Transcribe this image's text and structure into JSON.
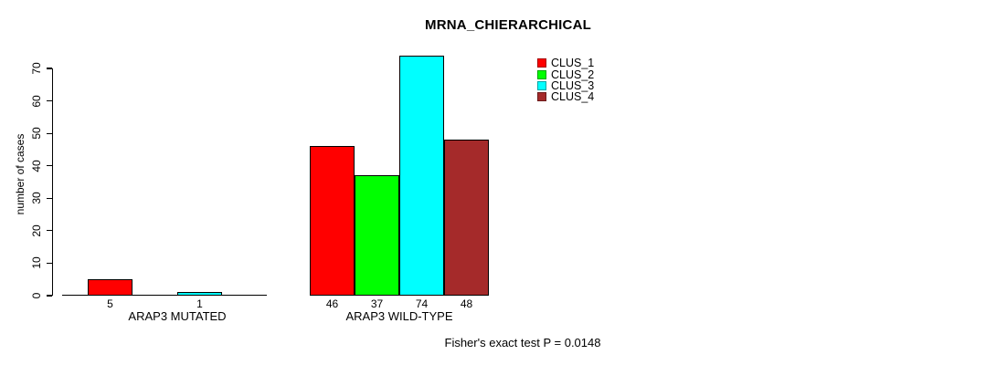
{
  "chart_data": {
    "type": "bar",
    "title": "MRNA_CHIERARCHICAL",
    "ylabel": "number of cases",
    "xlabel": "",
    "ylim": [
      0,
      70
    ],
    "yticks": [
      0,
      10,
      20,
      30,
      40,
      50,
      60,
      70
    ],
    "grid": false,
    "legend_position": "top-right",
    "categories": [
      "ARAP3 MUTATED",
      "ARAP3 WILD-TYPE"
    ],
    "series": [
      {
        "name": "CLUS_1",
        "color": "#FF0000",
        "values": [
          5,
          46
        ]
      },
      {
        "name": "CLUS_2",
        "color": "#00FF00",
        "values": [
          0,
          37
        ]
      },
      {
        "name": "CLUS_3",
        "color": "#00FFFF",
        "values": [
          1,
          74
        ]
      },
      {
        "name": "CLUS_4",
        "color": "#A52A2A",
        "values": [
          0,
          48
        ]
      }
    ],
    "bar_value_labels": [
      "5",
      "",
      "1",
      "",
      "46",
      "37",
      "74",
      "48"
    ],
    "zero_value_bars_hidden": true,
    "footnote": "Fisher's exact test P = 0.0148"
  }
}
